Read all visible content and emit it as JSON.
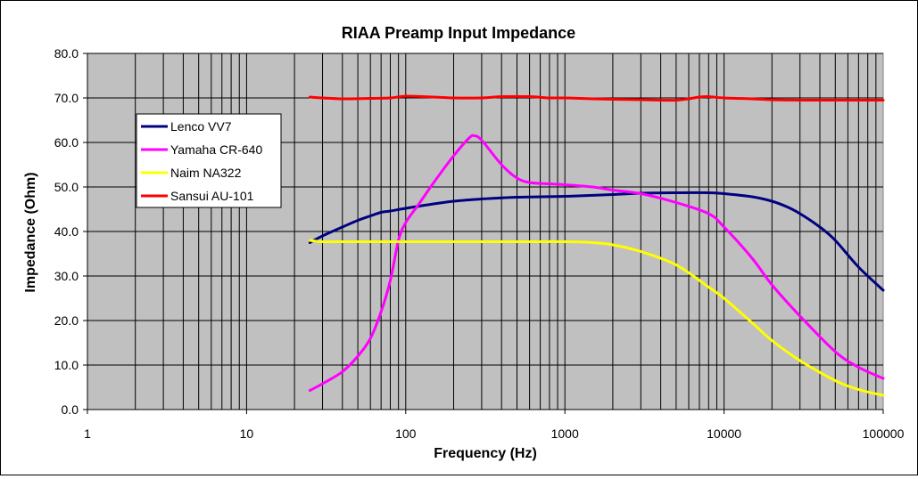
{
  "chart_data": {
    "type": "line",
    "title": "RIAA Preamp Input Impedance",
    "xlabel": "Frequency (Hz)",
    "ylabel": "Impedance (Ohm)",
    "x_scale": "log",
    "xlim": [
      1,
      100000
    ],
    "ylim": [
      0,
      80
    ],
    "x_ticks": [
      "1",
      "10",
      "100",
      "1000",
      "10000",
      "100000"
    ],
    "y_ticks": [
      "0.0",
      "10.0",
      "20.0",
      "30.0",
      "40.0",
      "50.0",
      "60.0",
      "70.0",
      "80.0"
    ],
    "grid": true,
    "plot_background": "#c0c0c0",
    "legend_position": "left",
    "series": [
      {
        "name": "Lenco VV7",
        "color": "#000080",
        "points": [
          [
            25,
            37.5
          ],
          [
            30,
            39
          ],
          [
            40,
            41
          ],
          [
            50,
            42.5
          ],
          [
            60,
            43.5
          ],
          [
            70,
            44.3
          ],
          [
            80,
            44.6
          ],
          [
            100,
            45.2
          ],
          [
            150,
            46.2
          ],
          [
            200,
            46.8
          ],
          [
            300,
            47.3
          ],
          [
            500,
            47.7
          ],
          [
            1000,
            47.9
          ],
          [
            2000,
            48.3
          ],
          [
            3000,
            48.6
          ],
          [
            5000,
            48.7
          ],
          [
            8000,
            48.7
          ],
          [
            10000,
            48.5
          ],
          [
            15000,
            47.8
          ],
          [
            20000,
            46.8
          ],
          [
            25000,
            45.5
          ],
          [
            30000,
            44
          ],
          [
            40000,
            41
          ],
          [
            50000,
            38
          ],
          [
            70000,
            32
          ],
          [
            100000,
            26.8
          ]
        ]
      },
      {
        "name": "Yamaha CR-640",
        "color": "#ff00ff",
        "points": [
          [
            25,
            4.3
          ],
          [
            30,
            5.8
          ],
          [
            40,
            8.5
          ],
          [
            50,
            12
          ],
          [
            60,
            16
          ],
          [
            70,
            22
          ],
          [
            80,
            29
          ],
          [
            90,
            38
          ],
          [
            100,
            42
          ],
          [
            120,
            46
          ],
          [
            150,
            51
          ],
          [
            200,
            57
          ],
          [
            250,
            61
          ],
          [
            270,
            61.5
          ],
          [
            300,
            60.5
          ],
          [
            400,
            55
          ],
          [
            500,
            52
          ],
          [
            600,
            51
          ],
          [
            800,
            50.7
          ],
          [
            1000,
            50.5
          ],
          [
            1500,
            50
          ],
          [
            2000,
            49.3
          ],
          [
            3000,
            48.5
          ],
          [
            5000,
            46.5
          ],
          [
            8000,
            44
          ],
          [
            10000,
            41
          ],
          [
            15000,
            34
          ],
          [
            20000,
            28
          ],
          [
            30000,
            21
          ],
          [
            50000,
            13
          ],
          [
            70000,
            9.5
          ],
          [
            100000,
            7
          ]
        ]
      },
      {
        "name": "Naim NA322",
        "color": "#ffff00",
        "points": [
          [
            25,
            38
          ],
          [
            30,
            37.7
          ],
          [
            40,
            37.7
          ],
          [
            100,
            37.7
          ],
          [
            500,
            37.7
          ],
          [
            1000,
            37.7
          ],
          [
            1500,
            37.5
          ],
          [
            2000,
            37
          ],
          [
            3000,
            35.5
          ],
          [
            5000,
            32.5
          ],
          [
            8000,
            27.5
          ],
          [
            10000,
            25
          ],
          [
            15000,
            19.5
          ],
          [
            20000,
            15.5
          ],
          [
            30000,
            11
          ],
          [
            50000,
            6.5
          ],
          [
            70000,
            4.5
          ],
          [
            100000,
            3.2
          ]
        ]
      },
      {
        "name": "Sansui AU-101",
        "color": "#ff0000",
        "points": [
          [
            25,
            70.2
          ],
          [
            30,
            70
          ],
          [
            40,
            69.8
          ],
          [
            60,
            69.9
          ],
          [
            80,
            70
          ],
          [
            100,
            70.4
          ],
          [
            150,
            70.2
          ],
          [
            200,
            70
          ],
          [
            300,
            70
          ],
          [
            400,
            70.3
          ],
          [
            600,
            70.3
          ],
          [
            800,
            70
          ],
          [
            1000,
            70
          ],
          [
            1500,
            69.8
          ],
          [
            2000,
            69.7
          ],
          [
            3000,
            69.6
          ],
          [
            5000,
            69.5
          ],
          [
            7000,
            70.2
          ],
          [
            8000,
            70.3
          ],
          [
            10000,
            70
          ],
          [
            15000,
            69.8
          ],
          [
            20000,
            69.6
          ],
          [
            30000,
            69.5
          ],
          [
            50000,
            69.5
          ],
          [
            100000,
            69.5
          ]
        ]
      }
    ]
  }
}
